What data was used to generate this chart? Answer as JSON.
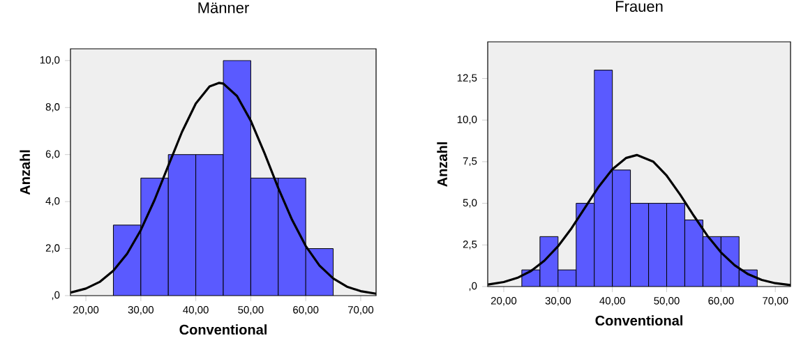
{
  "chart_data": [
    {
      "type": "histogram",
      "title": "Männer",
      "xlabel": "Conventional",
      "ylabel": "Anzahl",
      "bins": [
        25,
        30,
        35,
        40,
        45,
        50,
        55,
        60,
        65
      ],
      "series": [
        {
          "color": "#5a5aff",
          "values": [
            3,
            5,
            6,
            6,
            10,
            5,
            5,
            2
          ]
        },
        {
          "type": "line",
          "color": "#000000",
          "x": [
            17.2,
            20,
            22.5,
            25,
            27.5,
            30,
            32.5,
            35,
            37.5,
            40,
            42.5,
            44.2,
            45,
            47.5,
            50,
            52.5,
            55,
            57.5,
            60,
            62.5,
            65,
            67.5,
            70,
            72.8
          ],
          "values": [
            0.13,
            0.3,
            0.58,
            1.06,
            1.78,
            2.79,
            4.07,
            5.53,
            6.97,
            8.17,
            8.9,
            9.05,
            9.02,
            8.49,
            7.44,
            6.06,
            4.58,
            3.23,
            2.11,
            1.28,
            0.73,
            0.38,
            0.19,
            0.08
          ]
        }
      ],
      "xlim": [
        17.2,
        72.8
      ],
      "ylim": [
        0,
        10.5
      ],
      "xticks": [
        {
          "value": 20,
          "label": "20,00"
        },
        {
          "value": 30,
          "label": "30,00"
        },
        {
          "value": 40,
          "label": "40,00"
        },
        {
          "value": 50,
          "label": "50,00"
        },
        {
          "value": 60,
          "label": "60,00"
        },
        {
          "value": 70,
          "label": "70,00"
        }
      ],
      "yticks": [
        {
          "value": 0,
          "label": ",0"
        },
        {
          "value": 2,
          "label": "2,0"
        },
        {
          "value": 4,
          "label": "4,0"
        },
        {
          "value": 6,
          "label": "6,0"
        },
        {
          "value": 8,
          "label": "8,0"
        },
        {
          "value": 10,
          "label": "10,0"
        }
      ]
    },
    {
      "type": "histogram",
      "title": "Frauen",
      "xlabel": "Conventional",
      "ylabel": "Anzahl",
      "bins": [
        23.33,
        26.67,
        30,
        33.33,
        36.67,
        40,
        43.33,
        46.67,
        50,
        53.33,
        56.67,
        60,
        63.33,
        66.67
      ],
      "series": [
        {
          "color": "#5a5aff",
          "values": [
            1,
            3,
            1,
            5,
            13,
            7,
            5,
            5,
            5,
            4,
            3,
            3,
            1
          ]
        },
        {
          "type": "line",
          "color": "#000000",
          "x": [
            17.1,
            20,
            22.5,
            25,
            27.5,
            30,
            32.5,
            35,
            37.5,
            40,
            42.5,
            44.5,
            47.5,
            50,
            52.5,
            55,
            57.5,
            60,
            62.5,
            65,
            67.5,
            70,
            72.8
          ],
          "values": [
            0.12,
            0.27,
            0.52,
            0.93,
            1.56,
            2.42,
            3.51,
            4.76,
            6.0,
            7.05,
            7.72,
            7.9,
            7.51,
            6.66,
            5.51,
            4.25,
            3.05,
            2.05,
            1.28,
            0.74,
            0.4,
            0.2,
            0.09
          ]
        }
      ],
      "xlim": [
        17.05,
        72.8
      ],
      "ylim": [
        0,
        14.7
      ],
      "xticks": [
        {
          "value": 20,
          "label": "20,00"
        },
        {
          "value": 30,
          "label": "30,00"
        },
        {
          "value": 40,
          "label": "40,00"
        },
        {
          "value": 50,
          "label": "50,00"
        },
        {
          "value": 60,
          "label": "60,00"
        },
        {
          "value": 70,
          "label": "70,00"
        }
      ],
      "yticks": [
        {
          "value": 0,
          "label": ",0"
        },
        {
          "value": 2.5,
          "label": "2,5"
        },
        {
          "value": 5,
          "label": "5,0"
        },
        {
          "value": 7.5,
          "label": "7,5"
        },
        {
          "value": 10,
          "label": "10,0"
        },
        {
          "value": 12.5,
          "label": "12,5"
        }
      ]
    }
  ]
}
